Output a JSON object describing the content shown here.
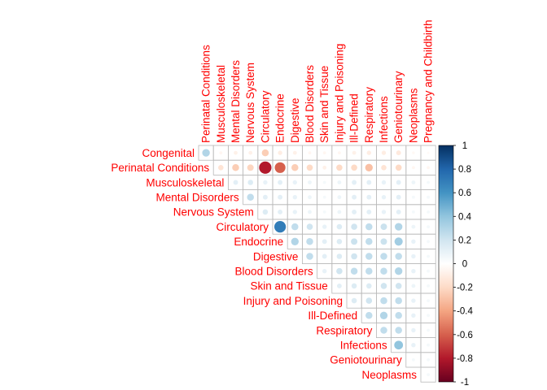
{
  "chart_data": {
    "type": "heatmap",
    "subtype": "correlation-upper",
    "column_labels": [
      "Perinatal Conditions",
      "Musculoskeletal",
      "Mental Disorders",
      "Nervous System",
      "Circulatory",
      "Endocrine",
      "Digestive",
      "Blood Disorders",
      "Skin and Tissue",
      "Injury and Poisoning",
      "Ill-Defined",
      "Respiratory",
      "Infections",
      "Geniotourinary",
      "Neoplasms",
      "Pregnancy and Childbirth"
    ],
    "row_labels": [
      "Congenital",
      "Perinatal Conditions",
      "Musculoskeletal",
      "Mental Disorders",
      "Nervous System",
      "Circulatory",
      "Endocrine",
      "Digestive",
      "Blood Disorders",
      "Skin and Tissue",
      "Injury and Poisoning",
      "Ill-Defined",
      "Respiratory",
      "Infections",
      "Geniotourinary",
      "Neoplasms"
    ],
    "values": [
      [
        0.3,
        -0.05,
        -0.08,
        -0.08,
        -0.25,
        -0.1,
        -0.08,
        -0.05,
        -0.05,
        -0.05,
        -0.08,
        -0.1,
        -0.1,
        -0.12,
        -0.04,
        -0.03
      ],
      [
        null,
        -0.15,
        -0.25,
        -0.22,
        -0.8,
        -0.6,
        -0.25,
        -0.2,
        -0.08,
        -0.2,
        -0.2,
        -0.3,
        -0.15,
        -0.2,
        -0.05,
        -0.05
      ],
      [
        null,
        null,
        0.12,
        0.15,
        0.1,
        0.12,
        0.1,
        0.08,
        0.05,
        0.08,
        0.12,
        0.12,
        0.1,
        0.12,
        0.08,
        0.05
      ],
      [
        null,
        null,
        null,
        0.25,
        0.12,
        0.12,
        0.1,
        0.08,
        0.05,
        0.08,
        0.12,
        0.12,
        0.1,
        0.12,
        0.05,
        0.05
      ],
      [
        null,
        null,
        null,
        null,
        0.15,
        0.12,
        0.1,
        0.08,
        0.05,
        0.08,
        0.12,
        0.12,
        0.1,
        0.12,
        0.05,
        0.05
      ],
      [
        null,
        null,
        null,
        null,
        null,
        0.7,
        0.25,
        0.2,
        0.1,
        0.15,
        0.2,
        0.25,
        0.22,
        0.3,
        0.08,
        0.05
      ],
      [
        null,
        null,
        null,
        null,
        null,
        null,
        0.3,
        0.25,
        0.12,
        0.15,
        0.22,
        0.25,
        0.22,
        0.35,
        0.1,
        0.05
      ],
      [
        null,
        null,
        null,
        null,
        null,
        null,
        null,
        0.25,
        0.12,
        0.15,
        0.2,
        0.25,
        0.25,
        0.25,
        0.1,
        0.05
      ],
      [
        null,
        null,
        null,
        null,
        null,
        null,
        null,
        null,
        0.1,
        0.2,
        0.25,
        0.25,
        0.25,
        0.3,
        0.1,
        0.05
      ],
      [
        null,
        null,
        null,
        null,
        null,
        null,
        null,
        null,
        null,
        0.12,
        0.15,
        0.15,
        0.2,
        0.2,
        0.08,
        0.05
      ],
      [
        null,
        null,
        null,
        null,
        null,
        null,
        null,
        null,
        null,
        null,
        0.15,
        0.2,
        0.25,
        0.25,
        0.1,
        0.05
      ],
      [
        null,
        null,
        null,
        null,
        null,
        null,
        null,
        null,
        null,
        null,
        null,
        0.25,
        0.3,
        0.25,
        0.1,
        0.05
      ],
      [
        null,
        null,
        null,
        null,
        null,
        null,
        null,
        null,
        null,
        null,
        null,
        null,
        0.25,
        0.25,
        0.1,
        0.05
      ],
      [
        null,
        null,
        null,
        null,
        null,
        null,
        null,
        null,
        null,
        null,
        null,
        null,
        null,
        0.4,
        0.1,
        0.05
      ],
      [
        null,
        null,
        null,
        null,
        null,
        null,
        null,
        null,
        null,
        null,
        null,
        null,
        null,
        null,
        0.05,
        0.05
      ],
      [
        null,
        null,
        null,
        null,
        null,
        null,
        null,
        null,
        null,
        null,
        null,
        null,
        null,
        null,
        null,
        0.05
      ]
    ],
    "colorbar": {
      "min": -1,
      "max": 1,
      "tick_labels": [
        "1",
        "0.8",
        "0.6",
        "0.4",
        "0.2",
        "0",
        "-0.2",
        "-0.4",
        "-0.6",
        "-0.8",
        "-1"
      ],
      "tick_values": [
        1,
        0.8,
        0.6,
        0.4,
        0.2,
        0,
        -0.2,
        -0.4,
        -0.6,
        -0.8,
        -1
      ]
    },
    "colors": {
      "label": "#ff0000",
      "grid": "#b8b8b8",
      "scale": [
        "#67001f",
        "#b2182b",
        "#d6604d",
        "#f4a582",
        "#fddbc7",
        "#ffffff",
        "#d1e5f0",
        "#92c5de",
        "#4393c3",
        "#2166ac",
        "#053061"
      ]
    }
  }
}
